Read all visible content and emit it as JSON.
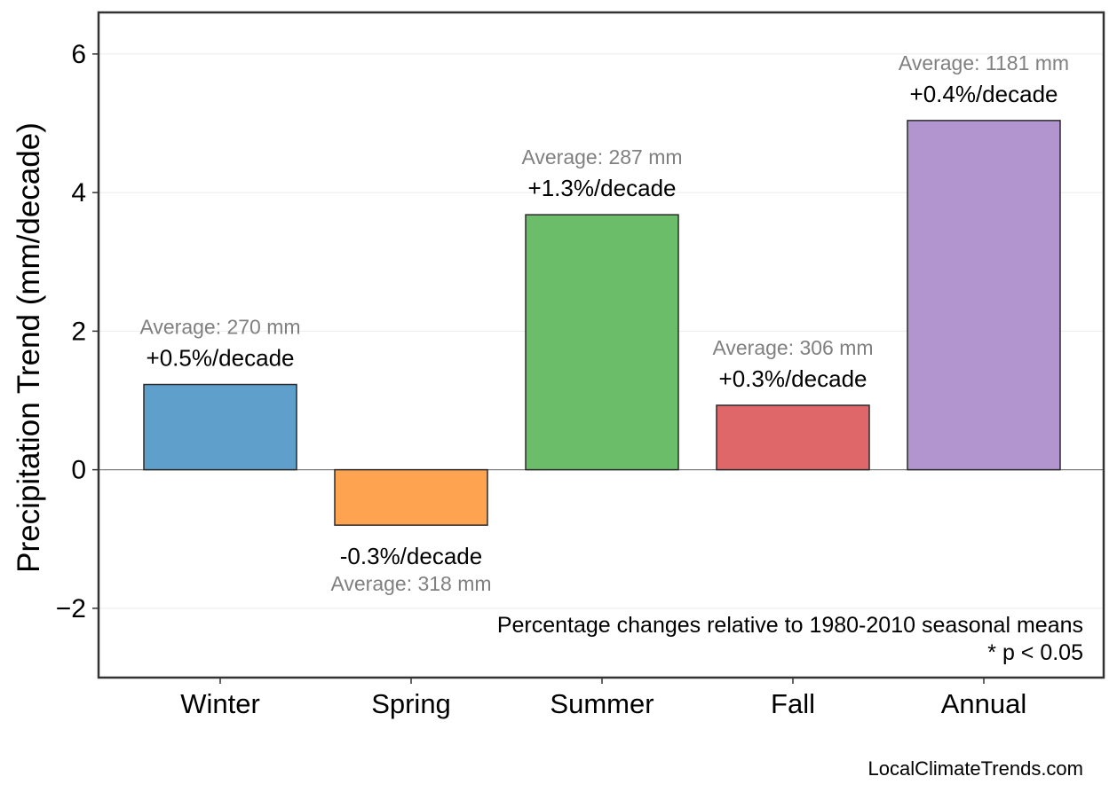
{
  "chart_data": {
    "type": "bar",
    "categories": [
      "Winter",
      "Spring",
      "Summer",
      "Fall",
      "Annual"
    ],
    "values": [
      1.23,
      -0.8,
      3.68,
      0.93,
      5.04
    ],
    "colors": [
      "#5f9fcb",
      "#fea450",
      "#6bbd6a",
      "#e06769",
      "#b294cf"
    ],
    "pct_labels": [
      "+0.5%/decade",
      "-0.3%/decade",
      "+1.3%/decade",
      "+0.3%/decade",
      "+0.4%/decade"
    ],
    "avg_labels": [
      "Average: 270 mm",
      "Average: 318 mm",
      "Average: 287 mm",
      "Average: 306 mm",
      "Average: 1181 mm"
    ],
    "ylabel": "Precipitation Trend (mm/decade)",
    "xlabel": "",
    "ylim": [
      -3.0,
      6.6
    ],
    "yticks": [
      -2,
      0,
      2,
      4,
      6
    ],
    "ytick_labels": [
      "−2",
      "0",
      "2",
      "4",
      "6"
    ],
    "grid": true,
    "note_lines": [
      "Percentage changes relative to 1980-2010 seasonal means",
      "* p < 0.05"
    ]
  },
  "source_text": "LocalClimateTrends.com"
}
